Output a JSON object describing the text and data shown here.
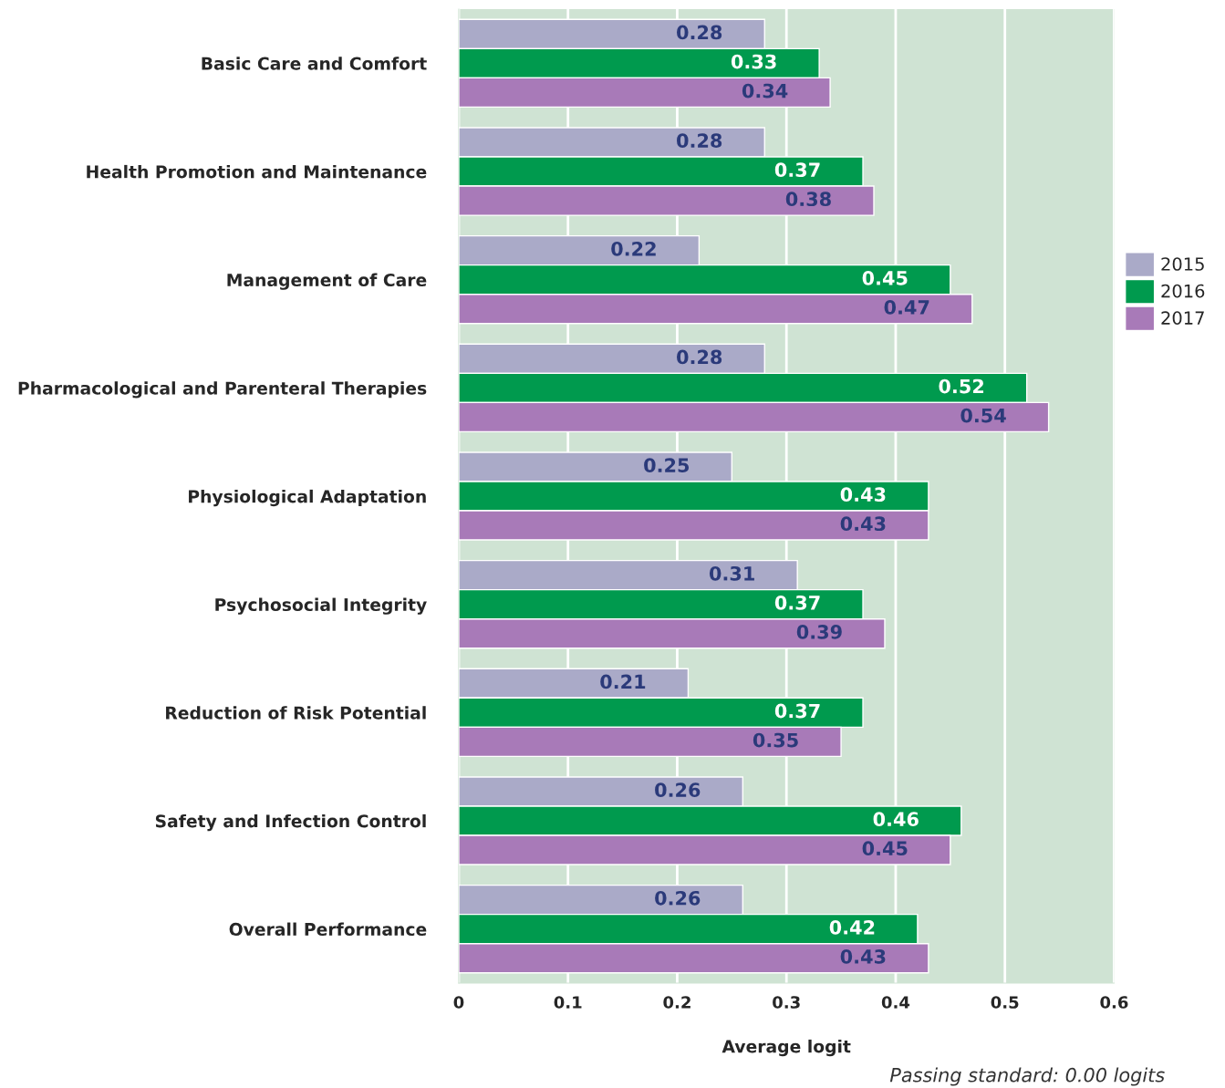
{
  "chart_data": {
    "type": "bar",
    "orientation": "horizontal",
    "xlabel": "Average logit",
    "categories": [
      "Basic Care and Comfort",
      "Health Promotion and Maintenance",
      "Management of Care",
      "Pharmacological and Parenteral Therapies",
      "Physiological Adaptation",
      "Psychosocial Integrity",
      "Reduction of Risk Potential",
      "Safety and Infection Control",
      "Overall Performance"
    ],
    "series": [
      {
        "name": "2015",
        "color": "#aaaac8",
        "values": [
          0.28,
          0.28,
          0.22,
          0.28,
          0.25,
          0.31,
          0.21,
          0.26,
          0.26
        ]
      },
      {
        "name": "2016",
        "color": "#009a4e",
        "values": [
          0.33,
          0.37,
          0.45,
          0.52,
          0.43,
          0.37,
          0.37,
          0.46,
          0.42
        ]
      },
      {
        "name": "2017",
        "color": "#a87ab8",
        "values": [
          0.34,
          0.38,
          0.47,
          0.54,
          0.43,
          0.39,
          0.35,
          0.45,
          0.43
        ]
      }
    ],
    "xlim": [
      0,
      0.6
    ],
    "xticks": [
      0,
      0.1,
      0.2,
      0.3,
      0.4,
      0.5,
      0.6
    ],
    "grid": "x",
    "legend": "right",
    "data_labels": true,
    "annotations": [
      "Passing standard: 0.00 logits"
    ]
  }
}
